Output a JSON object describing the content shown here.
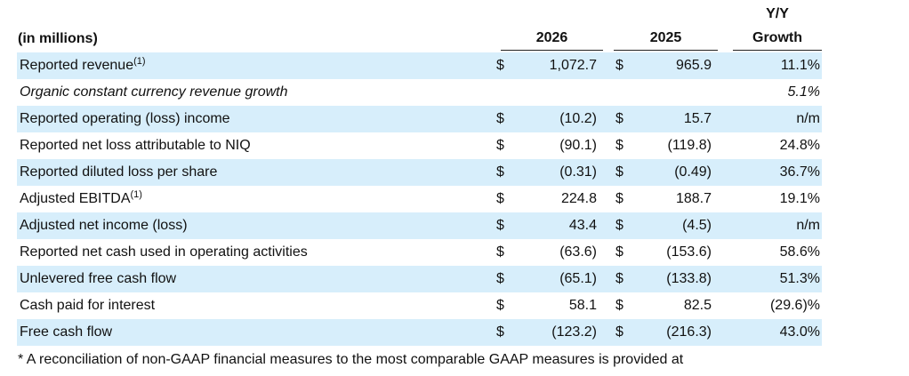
{
  "header": {
    "units_label": "(in millions)",
    "col_2026": "2026",
    "col_2025": "2025",
    "col_yy_line1": "Y/Y",
    "col_yy_line2": "Growth"
  },
  "rows": [
    {
      "label": "Reported revenue",
      "sup": "(1)",
      "d1": "$",
      "v2026": "1,072.7",
      "d2": "$",
      "v2025": "965.9",
      "yy": "11.1%",
      "shaded": true,
      "italic": false
    },
    {
      "label": "Organic constant currency revenue growth",
      "sup": "",
      "d1": "",
      "v2026": "",
      "d2": "",
      "v2025": "",
      "yy": "5.1%",
      "shaded": false,
      "italic": true
    },
    {
      "label": "Reported operating (loss) income",
      "sup": "",
      "d1": "$",
      "v2026": "(10.2)",
      "d2": "$",
      "v2025": "15.7",
      "yy": "n/m",
      "shaded": true,
      "italic": false
    },
    {
      "label": "Reported net loss attributable to NIQ",
      "sup": "",
      "d1": "$",
      "v2026": "(90.1)",
      "d2": "$",
      "v2025": "(119.8)",
      "yy": "24.8%",
      "shaded": false,
      "italic": false
    },
    {
      "label": "Reported diluted loss per share",
      "sup": "",
      "d1": "$",
      "v2026": "(0.31)",
      "d2": "$",
      "v2025": "(0.49)",
      "yy": "36.7%",
      "shaded": true,
      "italic": false
    },
    {
      "label": "Adjusted EBITDA",
      "sup": "(1)",
      "d1": "$",
      "v2026": "224.8",
      "d2": "$",
      "v2025": "188.7",
      "yy": "19.1%",
      "shaded": false,
      "italic": false
    },
    {
      "label": "Adjusted net income (loss)",
      "sup": "",
      "d1": "$",
      "v2026": "43.4",
      "d2": "$",
      "v2025": "(4.5)",
      "yy": "n/m",
      "shaded": true,
      "italic": false
    },
    {
      "label": "Reported net cash used in operating activities",
      "sup": "",
      "d1": "$",
      "v2026": "(63.6)",
      "d2": "$",
      "v2025": "(153.6)",
      "yy": "58.6%",
      "shaded": false,
      "italic": false
    },
    {
      "label": "Unlevered free cash flow",
      "sup": "",
      "d1": "$",
      "v2026": "(65.1)",
      "d2": "$",
      "v2025": "(133.8)",
      "yy": "51.3%",
      "shaded": true,
      "italic": false
    },
    {
      "label": "Cash paid for interest",
      "sup": "",
      "d1": "$",
      "v2026": "58.1",
      "d2": "$",
      "v2025": "82.5",
      "yy": "(29.6)%",
      "shaded": false,
      "italic": false
    },
    {
      "label": "Free cash flow",
      "sup": "",
      "d1": "$",
      "v2026": "(123.2)",
      "d2": "$",
      "v2025": "(216.3)",
      "yy": "43.0%",
      "shaded": true,
      "italic": false
    }
  ],
  "footnote": "* A reconciliation of non-GAAP financial measures to the most comparable GAAP measures is provided at",
  "colors": {
    "shaded_row": "#d7eefb",
    "text": "#111111"
  }
}
